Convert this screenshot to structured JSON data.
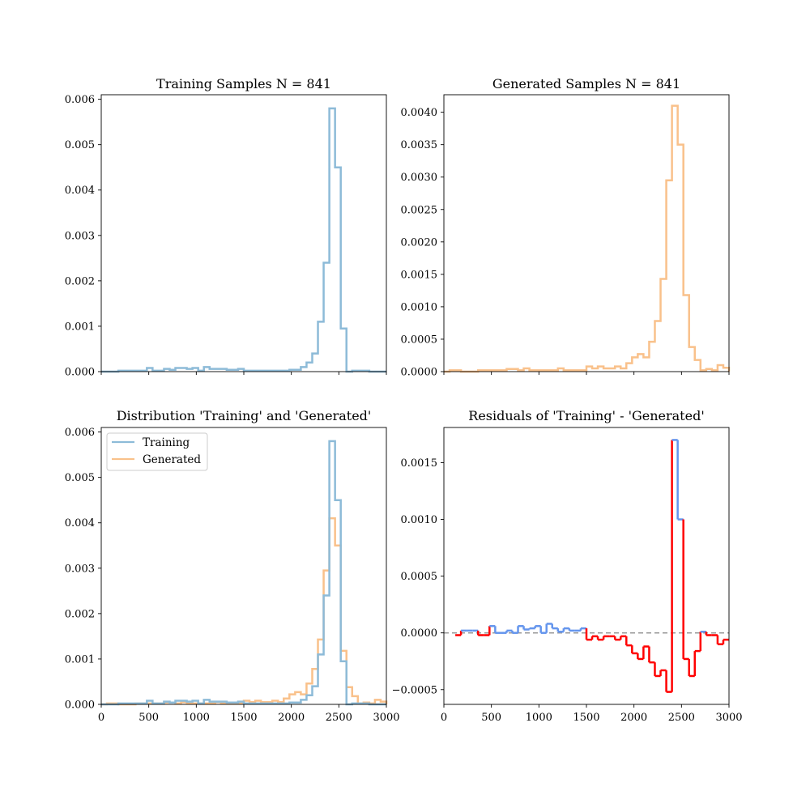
{
  "colors": {
    "training": "#8dbbd8",
    "generated": "#f9c18b",
    "residual_positive": "#6495ed",
    "residual_negative": "#ff0000",
    "zero_line": "#999999"
  },
  "bin_edges": [
    0,
    60,
    120,
    180,
    240,
    300,
    360,
    420,
    480,
    540,
    600,
    660,
    720,
    780,
    840,
    900,
    960,
    1020,
    1080,
    1140,
    1200,
    1260,
    1320,
    1380,
    1440,
    1500,
    1560,
    1620,
    1680,
    1740,
    1800,
    1860,
    1920,
    1980,
    2040,
    2100,
    2160,
    2220,
    2280,
    2340,
    2400,
    2460,
    2520,
    2580,
    2640,
    2700,
    2760,
    2820,
    2880,
    2940,
    3000
  ],
  "chart_data": [
    {
      "type": "histogram",
      "title": "Training Samples N = 841",
      "xlim": [
        0,
        3000
      ],
      "ylim": [
        0,
        0.0061
      ],
      "xticks": [
        0,
        500,
        1000,
        1500,
        2000,
        2500,
        3000
      ],
      "yticks": [
        0,
        0.001,
        0.002,
        0.003,
        0.004,
        0.005,
        0.006
      ],
      "ytick_labels": [
        "0.000",
        "0.001",
        "0.002",
        "0.003",
        "0.004",
        "0.005",
        "0.006"
      ],
      "show_xtick_labels": false,
      "series": [
        {
          "key": "training",
          "values": [
            0,
            0,
            0,
            2e-05,
            2e-05,
            2e-05,
            2e-05,
            2e-05,
            8e-05,
            2e-05,
            2e-05,
            6e-05,
            4e-05,
            8e-05,
            8e-05,
            6e-05,
            8e-05,
            2e-05,
            0.0001,
            6e-05,
            6e-05,
            6e-05,
            4e-05,
            4e-05,
            6e-05,
            2e-05,
            2e-05,
            2e-05,
            2e-05,
            2e-05,
            2e-05,
            2e-05,
            2e-05,
            4e-05,
            4e-05,
            0.0001,
            0.0002,
            0.0004,
            0.0011,
            0.0024,
            0.0058,
            0.0045,
            0.00095,
            0,
            2e-05,
            2e-05,
            2e-05,
            0,
            0,
            0
          ]
        }
      ]
    },
    {
      "type": "histogram",
      "title": "Generated Samples N = 841",
      "xlim": [
        0,
        3000
      ],
      "ylim": [
        0,
        0.00427
      ],
      "xticks": [
        0,
        500,
        1000,
        1500,
        2000,
        2500,
        3000
      ],
      "yticks": [
        0,
        0.0005,
        0.001,
        0.0015,
        0.002,
        0.0025,
        0.003,
        0.0035,
        0.004
      ],
      "ytick_labels": [
        "0.0000",
        "0.0005",
        "0.0010",
        "0.0015",
        "0.0020",
        "0.0025",
        "0.0030",
        "0.0035",
        "0.0040"
      ],
      "show_xtick_labels": false,
      "series": [
        {
          "key": "generated",
          "values": [
            0,
            2e-05,
            2e-05,
            0,
            0,
            0,
            2e-05,
            2e-05,
            2e-05,
            2e-05,
            2e-05,
            4e-05,
            4e-05,
            2e-05,
            5e-05,
            2e-05,
            2e-05,
            2e-05,
            2e-05,
            2e-05,
            5e-05,
            2e-05,
            2e-05,
            2e-05,
            2e-05,
            8e-05,
            5e-05,
            8e-05,
            5e-05,
            5e-05,
            8e-05,
            5e-05,
            0.00013,
            0.00022,
            0.00027,
            0.00022,
            0.00046,
            0.00078,
            0.00143,
            0.00295,
            0.0041,
            0.0035,
            0.00118,
            0.00038,
            0.00018,
            2e-05,
            4e-05,
            2e-05,
            0.0001,
            6e-05
          ]
        }
      ]
    },
    {
      "type": "histogram",
      "title": "Distribution 'Training' and 'Generated'",
      "xlim": [
        0,
        3000
      ],
      "ylim": [
        0,
        0.0061
      ],
      "xticks": [
        0,
        500,
        1000,
        1500,
        2000,
        2500,
        3000
      ],
      "yticks": [
        0,
        0.001,
        0.002,
        0.003,
        0.004,
        0.005,
        0.006
      ],
      "ytick_labels": [
        "0.000",
        "0.001",
        "0.002",
        "0.003",
        "0.004",
        "0.005",
        "0.006"
      ],
      "show_xtick_labels": true,
      "legend": {
        "location": "upper-left",
        "entries": [
          {
            "key": "training",
            "label": "Training"
          },
          {
            "key": "generated",
            "label": "Generated"
          }
        ]
      },
      "series": [
        {
          "key": "generated",
          "values": [
            0,
            2e-05,
            2e-05,
            0,
            0,
            0,
            2e-05,
            2e-05,
            2e-05,
            2e-05,
            2e-05,
            4e-05,
            4e-05,
            2e-05,
            5e-05,
            2e-05,
            2e-05,
            2e-05,
            2e-05,
            2e-05,
            5e-05,
            2e-05,
            2e-05,
            2e-05,
            2e-05,
            8e-05,
            5e-05,
            8e-05,
            5e-05,
            5e-05,
            8e-05,
            5e-05,
            0.00013,
            0.00022,
            0.00027,
            0.00022,
            0.00046,
            0.00078,
            0.00143,
            0.00295,
            0.0041,
            0.0035,
            0.00118,
            0.00038,
            0.00018,
            2e-05,
            4e-05,
            2e-05,
            0.0001,
            6e-05
          ]
        },
        {
          "key": "training",
          "values": [
            0,
            0,
            0,
            2e-05,
            2e-05,
            2e-05,
            2e-05,
            2e-05,
            8e-05,
            2e-05,
            2e-05,
            6e-05,
            4e-05,
            8e-05,
            8e-05,
            6e-05,
            8e-05,
            2e-05,
            0.0001,
            6e-05,
            6e-05,
            6e-05,
            4e-05,
            4e-05,
            6e-05,
            2e-05,
            2e-05,
            2e-05,
            2e-05,
            2e-05,
            2e-05,
            2e-05,
            2e-05,
            4e-05,
            4e-05,
            0.0001,
            0.0002,
            0.0004,
            0.0011,
            0.0024,
            0.0058,
            0.0045,
            0.00095,
            0,
            2e-05,
            2e-05,
            2e-05,
            0,
            0,
            0
          ]
        }
      ]
    },
    {
      "type": "histogram",
      "title": "Residuals of 'Training' - 'Generated'",
      "xlim": [
        0,
        3000
      ],
      "ylim": [
        -0.00063,
        0.00181
      ],
      "xticks": [
        0,
        500,
        1000,
        1500,
        2000,
        2500,
        3000
      ],
      "yticks": [
        -0.0005,
        0,
        0.0005,
        0.001,
        0.0015
      ],
      "ytick_labels": [
        "−0.0005",
        "0.0000",
        "0.0005",
        "0.0010",
        "0.0015"
      ],
      "show_xtick_labels": true,
      "zero_line": true,
      "residual_bins_shown": [
        2,
        49
      ],
      "series": [
        {
          "key": "residual",
          "values": [
            0,
            -2e-05,
            -2e-05,
            2e-05,
            2e-05,
            2e-05,
            -2e-05,
            -2e-05,
            6e-05,
            0,
            0,
            2e-05,
            0,
            6e-05,
            3e-05,
            4e-05,
            6e-05,
            0,
            8e-05,
            4e-05,
            1e-05,
            4e-05,
            2e-05,
            2e-05,
            4e-05,
            -6e-05,
            -3e-05,
            -6e-05,
            -3e-05,
            -3e-05,
            -6e-05,
            -3e-05,
            -0.00011,
            -0.00018,
            -0.00023,
            -0.00012,
            -0.00026,
            -0.00038,
            -0.00033,
            -0.00052,
            0.0017,
            0.001,
            -0.00023,
            -0.00038,
            -0.00016,
            1e-05,
            -2e-05,
            -2e-05,
            -0.0001,
            -6e-05
          ]
        }
      ]
    }
  ]
}
